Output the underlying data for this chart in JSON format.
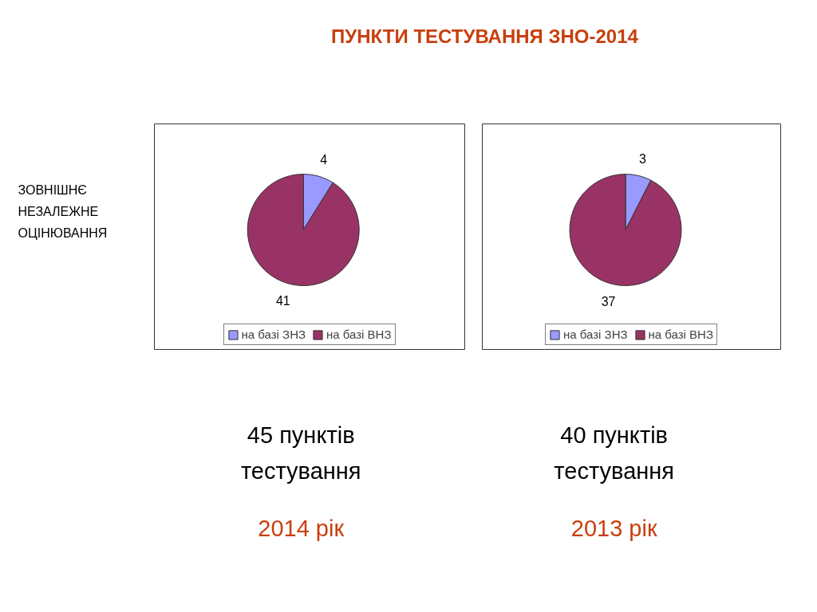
{
  "chart_data": [
    {
      "type": "pie",
      "title": "ПУНКТИ ТЕСТУВАННЯ ЗНО-2014",
      "categories": [
        "на базі ЗНЗ",
        "на базі ВНЗ"
      ],
      "values": [
        4,
        41
      ],
      "colors": [
        "#9999ff",
        "#993366"
      ],
      "data_labels": true,
      "legend": "bottom",
      "annotations": [
        "ЗОВНІШНЄ НЕЗАЛЕЖНЕ ОЦІНЮВАННЯ",
        "45 пунктів тестування",
        "2014 рік"
      ]
    },
    {
      "type": "pie",
      "categories": [
        "на базі ЗНЗ",
        "на базі ВНЗ"
      ],
      "values": [
        3,
        37
      ],
      "colors": [
        "#9999ff",
        "#993366"
      ],
      "data_labels": true,
      "legend": "bottom",
      "annotations": [
        "40 пунктів тестування",
        "2013 рік"
      ]
    }
  ]
}
